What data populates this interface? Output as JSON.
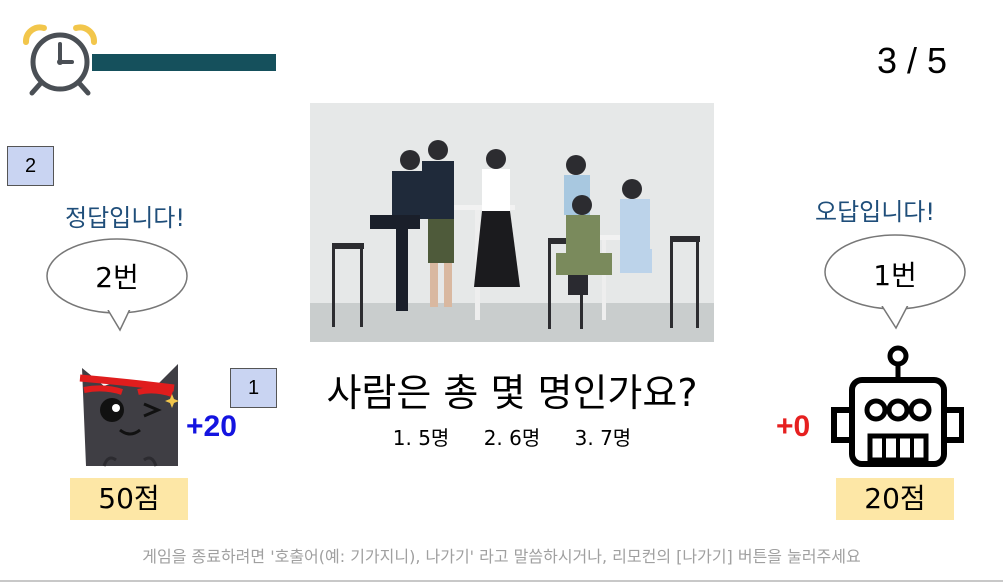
{
  "round": "3 / 5",
  "timer": {
    "remaining_fraction": 0.8
  },
  "question": {
    "text": "사람은 총 몇 명인가요?",
    "options": [
      "1. 5명",
      "2. 6명",
      "3. 7명"
    ]
  },
  "left_player": {
    "box": "2",
    "result": "정답입니다!",
    "answer": "2번",
    "gain": "+20",
    "score": "50점"
  },
  "right_player": {
    "result": "오답입니다!",
    "answer": "1번",
    "gain": "+0",
    "score": "20점"
  },
  "middle_box": "1",
  "footer": "게임을 종료하려면 '호출어(예: 기가지니), 나가기' 라고 말씀하시거나, 리모컨의 [나가기] 버튼을 눌러주세요",
  "colors": {
    "timer_bar": "#15505c",
    "box": "#c9d4f2",
    "score_bg": "#fde7a6",
    "result_text": "#1f4e7a",
    "gain_positive": "#1414e0",
    "gain_zero": "#e62020"
  },
  "icons": {
    "timer": "alarm-clock-icon",
    "left_avatar": "winking-cat-icon",
    "right_avatar": "robot-icon"
  }
}
